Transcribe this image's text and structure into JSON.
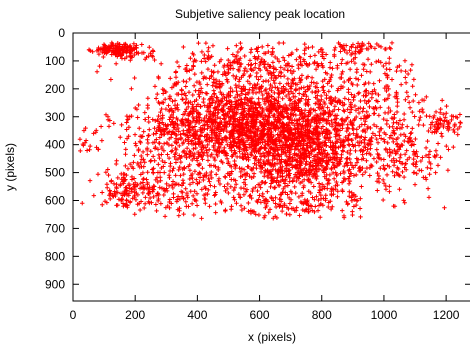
{
  "chart_data": {
    "type": "scatter",
    "title": "Subjetive saliency peak location",
    "xlabel": "x (pixels)",
    "ylabel": "y (pixels)",
    "xlim": [
      0,
      1280
    ],
    "ylim": [
      0,
      960
    ],
    "y_axis_inverted": true,
    "grid": false,
    "legend": "none",
    "xticks": [
      0,
      200,
      400,
      600,
      800,
      1000,
      1200
    ],
    "yticks": [
      0,
      100,
      200,
      300,
      400,
      500,
      600,
      700,
      800,
      900
    ],
    "marker": "plus",
    "color": "#ff0000",
    "clusters": [
      {
        "center": [
          640,
          360
        ],
        "spread": [
          175,
          105
        ],
        "count": 1800
      },
      {
        "center": [
          520,
          300
        ],
        "spread": [
          120,
          80
        ],
        "count": 450
      },
      {
        "center": [
          760,
          430
        ],
        "spread": [
          120,
          90
        ],
        "count": 450
      },
      {
        "center": [
          150,
          60
        ],
        "spread": [
          45,
          12
        ],
        "count": 160
      },
      {
        "center": [
          180,
          560
        ],
        "spread": [
          50,
          30
        ],
        "count": 130
      },
      {
        "center": [
          960,
          220
        ],
        "spread": [
          90,
          110
        ],
        "count": 200
      },
      {
        "center": [
          1080,
          440
        ],
        "spread": [
          55,
          60
        ],
        "count": 130
      },
      {
        "center": [
          1200,
          320
        ],
        "spread": [
          35,
          25
        ],
        "count": 70
      },
      {
        "center": [
          40,
          390
        ],
        "spread": [
          25,
          20
        ],
        "count": 20
      },
      {
        "center": [
          300,
          390
        ],
        "spread": [
          90,
          110
        ],
        "count": 220
      },
      {
        "center": [
          700,
          610
        ],
        "spread": [
          110,
          30
        ],
        "count": 130
      },
      {
        "center": [
          350,
          580
        ],
        "spread": [
          70,
          40
        ],
        "count": 90
      },
      {
        "center": [
          600,
          100
        ],
        "spread": [
          150,
          40
        ],
        "count": 220
      },
      {
        "center": [
          910,
          50
        ],
        "spread": [
          40,
          15
        ],
        "count": 40
      }
    ],
    "bounds": {
      "x": [
        20,
        1250
      ],
      "y": [
        35,
        665
      ]
    }
  }
}
